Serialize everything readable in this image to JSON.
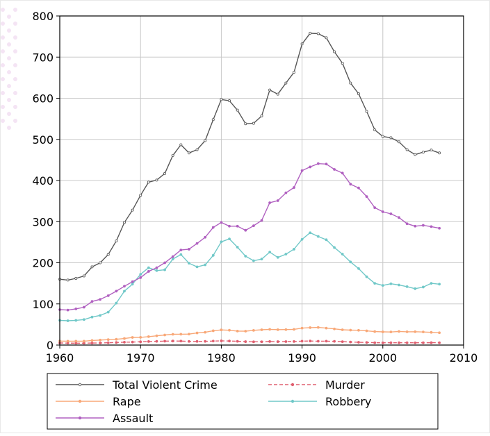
{
  "chart_data": {
    "type": "line",
    "title": "",
    "xlabel": "",
    "ylabel": "",
    "xlim": [
      1960,
      2010
    ],
    "ylim": [
      0,
      800
    ],
    "xticks": [
      1960,
      1970,
      1980,
      1990,
      2000,
      2010
    ],
    "yticks": [
      0,
      100,
      200,
      300,
      400,
      500,
      600,
      700,
      800
    ],
    "grid": true,
    "legend_position": "bottom",
    "x": [
      1960,
      1961,
      1962,
      1963,
      1964,
      1965,
      1966,
      1967,
      1968,
      1969,
      1970,
      1971,
      1972,
      1973,
      1974,
      1975,
      1976,
      1977,
      1978,
      1979,
      1980,
      1981,
      1982,
      1983,
      1984,
      1985,
      1986,
      1987,
      1988,
      1989,
      1990,
      1991,
      1992,
      1993,
      1994,
      1995,
      1996,
      1997,
      1998,
      1999,
      2000,
      2001,
      2002,
      2003,
      2004,
      2005,
      2006,
      2007
    ],
    "series": [
      {
        "name": "Total Violent Crime",
        "color": "#555555",
        "marker": "circle",
        "values": [
          160,
          158,
          162,
          168,
          190,
          200,
          220,
          253,
          298,
          328,
          364,
          396,
          401,
          417,
          461,
          487,
          467,
          475,
          497,
          548,
          597,
          594,
          571,
          538,
          539,
          557,
          620,
          610,
          637,
          663,
          732,
          758,
          757,
          747,
          713,
          685,
          637,
          611,
          568,
          523,
          507,
          504,
          494,
          475,
          463,
          469,
          474,
          467
        ]
      },
      {
        "name": "Murder",
        "color": "#e06070",
        "marker": "dot",
        "dashed": true,
        "values": [
          5.1,
          4.8,
          4.6,
          4.6,
          4.9,
          5.1,
          5.6,
          6.2,
          6.9,
          7.3,
          7.9,
          8.6,
          9.0,
          9.4,
          9.8,
          9.6,
          8.8,
          8.8,
          9.0,
          9.7,
          10.2,
          9.8,
          9.1,
          8.3,
          7.9,
          8.0,
          8.6,
          8.3,
          8.4,
          8.7,
          9.4,
          9.8,
          9.3,
          9.5,
          9.0,
          8.2,
          7.4,
          6.8,
          6.3,
          5.7,
          5.5,
          5.6,
          5.6,
          5.7,
          5.5,
          5.6,
          5.8,
          5.7
        ]
      },
      {
        "name": "Rape",
        "color": "#f8a878",
        "marker": "dot",
        "values": [
          9.6,
          9.4,
          9.4,
          9.4,
          11.2,
          12.1,
          13.2,
          14.0,
          15.9,
          18.5,
          18.7,
          20.5,
          22.5,
          24.5,
          26.2,
          26.3,
          26.6,
          29.4,
          31.0,
          34.7,
          36.8,
          36.0,
          34.0,
          33.7,
          35.7,
          37.1,
          38.1,
          37.4,
          37.6,
          38.1,
          41.1,
          42.3,
          42.8,
          41.1,
          39.3,
          37.1,
          36.3,
          35.9,
          34.5,
          32.8,
          32.0,
          31.8,
          33.1,
          32.3,
          32.4,
          31.8,
          30.9,
          30.0
        ]
      },
      {
        "name": "Robbery",
        "color": "#70c8c8",
        "marker": "dot",
        "values": [
          60,
          59,
          60,
          62,
          68,
          72,
          80,
          102,
          131,
          148,
          172,
          188,
          181,
          183,
          209,
          220,
          199,
          190,
          195,
          218,
          251,
          258,
          238,
          216,
          205,
          209,
          226,
          213,
          221,
          233,
          257,
          273,
          264,
          256,
          237,
          221,
          202,
          186,
          166,
          150,
          145,
          149,
          146,
          142,
          137,
          141,
          150,
          148
        ]
      },
      {
        "name": "Assault",
        "color": "#b060c0",
        "marker": "dot",
        "values": [
          86,
          85,
          88,
          92,
          106,
          111,
          120,
          131,
          143,
          154,
          164,
          179,
          188,
          200,
          215,
          231,
          233,
          247,
          262,
          286,
          298,
          289,
          289,
          279,
          290,
          303,
          346,
          351,
          370,
          383,
          424,
          433,
          441,
          440,
          427,
          418,
          391,
          382,
          361,
          334,
          324,
          319,
          310,
          295,
          289,
          291,
          288,
          284
        ]
      }
    ],
    "legend": [
      {
        "name": "Total Violent Crime",
        "color": "#555555"
      },
      {
        "name": "Murder",
        "color": "#e06070"
      },
      {
        "name": "Rape",
        "color": "#f8a878"
      },
      {
        "name": "Robbery",
        "color": "#70c8c8"
      },
      {
        "name": "Assault",
        "color": "#b060c0"
      }
    ]
  }
}
